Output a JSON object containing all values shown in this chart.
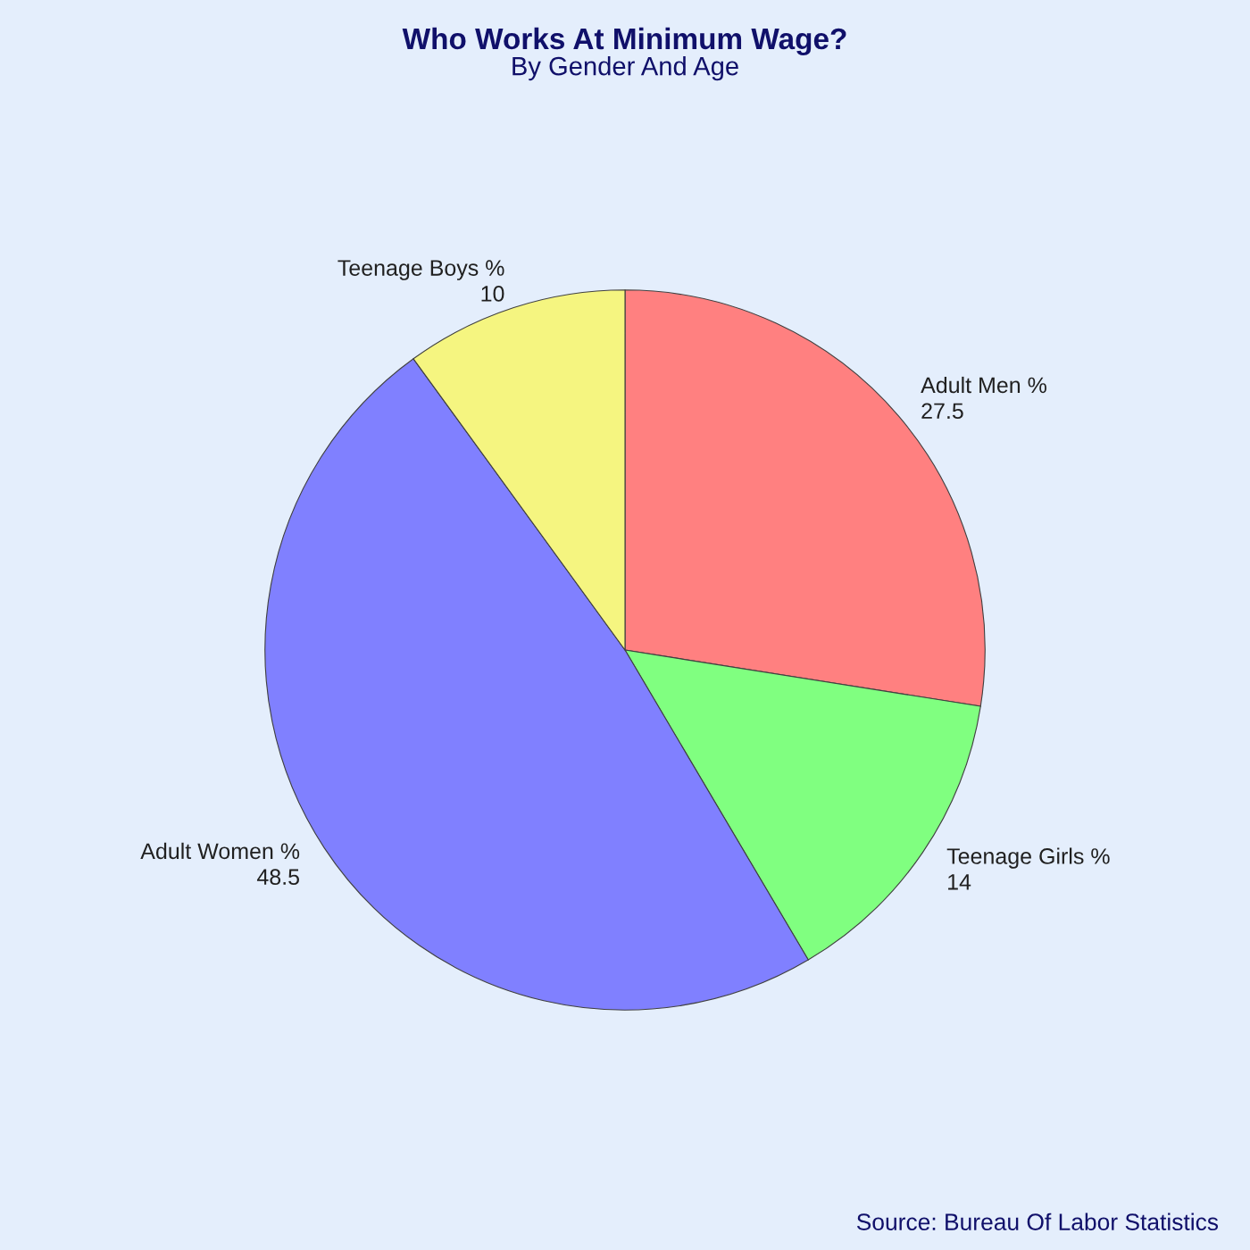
{
  "chart_data": {
    "type": "pie",
    "title": "Who Works At Minimum Wage?",
    "subtitle": "By Gender And Age",
    "categories": [
      "Adult Men %",
      "Teenage Girls %",
      "Adult Women %",
      "Teenage Boys %"
    ],
    "values": [
      27.5,
      14,
      48.5,
      10
    ],
    "colors": [
      "#ff8080",
      "#80ff80",
      "#8080ff",
      "#f5f580"
    ],
    "data_labels": true,
    "annotations": [
      "Source: Bureau Of Labor Statistics"
    ]
  }
}
